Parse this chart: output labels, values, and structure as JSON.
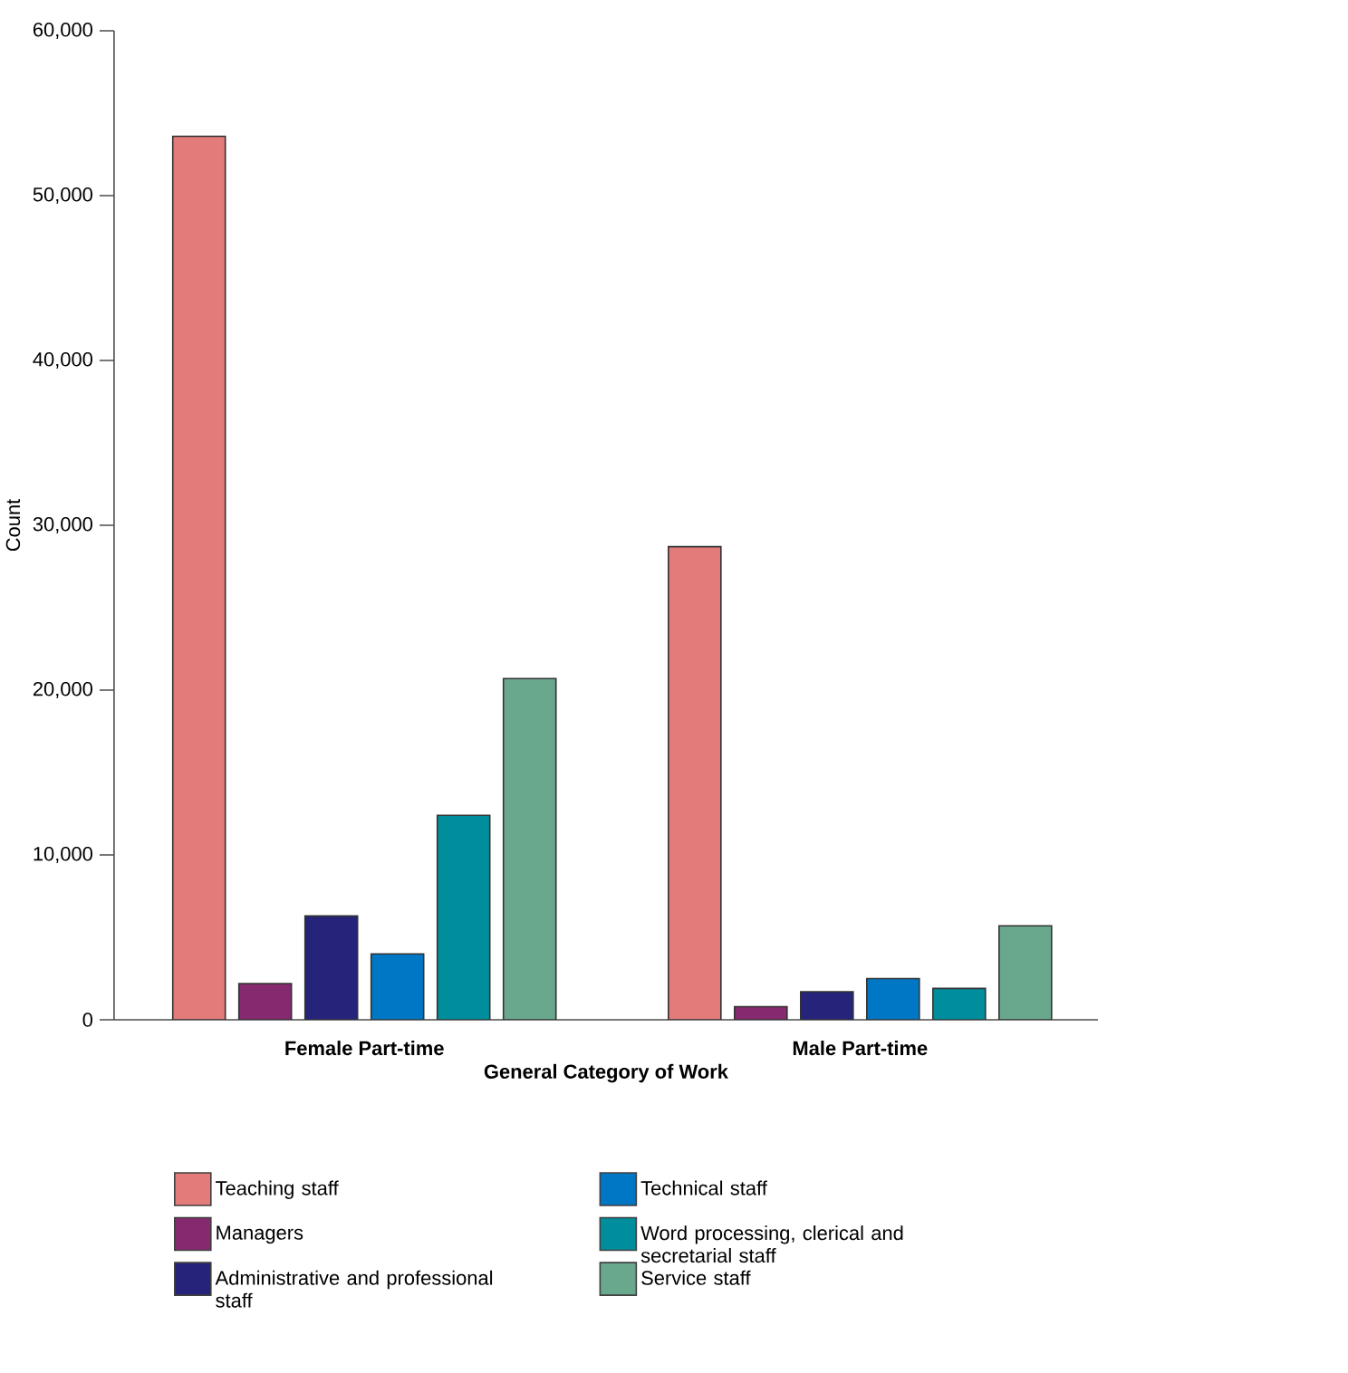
{
  "chart_data": {
    "type": "bar",
    "xlabel": "General Category of Work",
    "ylabel": "Count",
    "categories": [
      "Female Part-time",
      "Male Part-time"
    ],
    "series": [
      {
        "name": "Teaching staff",
        "color": "#e37b7b",
        "values": [
          53600,
          28700
        ]
      },
      {
        "name": "Managers",
        "color": "#862a6f",
        "values": [
          2200,
          800
        ]
      },
      {
        "name": "Administrative and professional staff",
        "color": "#25237a",
        "values": [
          6300,
          1700
        ]
      },
      {
        "name": "Technical staff",
        "color": "#0077c4",
        "values": [
          4000,
          2500
        ]
      },
      {
        "name": "Word processing, clerical and secretarial staff",
        "color": "#008e9c",
        "values": [
          12400,
          1900
        ]
      },
      {
        "name": "Service staff",
        "color": "#69a88c",
        "values": [
          20700,
          5700
        ]
      }
    ],
    "ylim": [
      0,
      60000
    ],
    "yticks": [
      {
        "value": 0,
        "label": "0"
      },
      {
        "value": 10000,
        "label": "10,000"
      },
      {
        "value": 20000,
        "label": "20,000"
      },
      {
        "value": 30000,
        "label": "30,000"
      },
      {
        "value": 40000,
        "label": "40,000"
      },
      {
        "value": 50000,
        "label": "50,000"
      },
      {
        "value": 60000,
        "label": "60,000"
      }
    ],
    "legend": "bottom"
  }
}
